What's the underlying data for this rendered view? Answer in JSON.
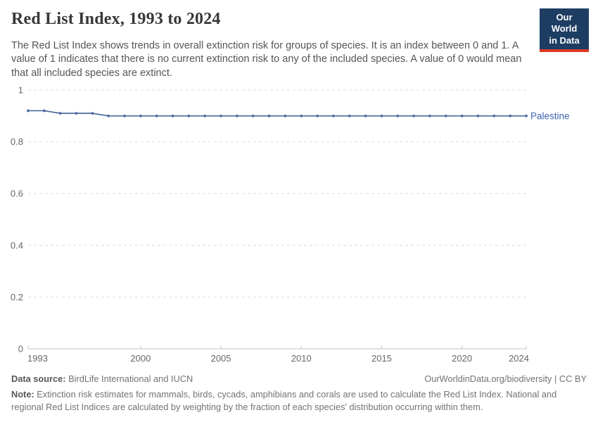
{
  "header": {
    "title": "Red List Index, 1993 to 2024",
    "subtitle": "The Red List Index shows trends in overall extinction risk for groups of species. It is an index between 0 and 1. A value of 1 indicates that there is no current extinction risk to any of the included species. A value of 0 would mean that all included species are extinct.",
    "logo": {
      "line1": "Our World",
      "line2": "in Data",
      "bg_color": "#1d3d63",
      "bar_color": "#dc3927"
    }
  },
  "chart_data": {
    "type": "line",
    "title": "Red List Index, 1993 to 2024",
    "x": [
      1993,
      1994,
      1995,
      1996,
      1997,
      1998,
      1999,
      2000,
      2001,
      2002,
      2003,
      2004,
      2005,
      2006,
      2007,
      2008,
      2009,
      2010,
      2011,
      2012,
      2013,
      2014,
      2015,
      2016,
      2017,
      2018,
      2019,
      2020,
      2021,
      2022,
      2023,
      2024
    ],
    "series": [
      {
        "name": "Palestine",
        "color": "#4C6A9C",
        "label_color": "#3d64ab",
        "values": [
          0.92,
          0.92,
          0.91,
          0.91,
          0.91,
          0.9,
          0.9,
          0.9,
          0.9,
          0.9,
          0.9,
          0.9,
          0.9,
          0.9,
          0.9,
          0.9,
          0.9,
          0.9,
          0.9,
          0.9,
          0.9,
          0.9,
          0.9,
          0.9,
          0.9,
          0.9,
          0.9,
          0.9,
          0.9,
          0.9,
          0.9,
          0.9
        ]
      }
    ],
    "xlabel": "",
    "ylabel": "",
    "ylim": [
      0,
      1
    ],
    "y_ticks": [
      0,
      0.2,
      0.4,
      0.6,
      0.8,
      1
    ],
    "x_tick_labels": [
      "1993",
      "2000",
      "2005",
      "2010",
      "2015",
      "2020",
      "2024"
    ],
    "grid": "horizontal-dashed",
    "grid_color": "#dedede",
    "axis_color": "#c4c4c4",
    "tick_text_color": "#666666",
    "legend_position": "end-of-line-label"
  },
  "footer": {
    "datasource_label": "Data source:",
    "datasource_value": " BirdLife International and IUCN",
    "attribution": "OurWorldinData.org/biodiversity | CC BY",
    "note_label": "Note:",
    "note_value": " Extinction risk estimates for mammals, birds, cycads, amphibians and corals are used to calculate the Red List Index. National and regional Red List Indices are calculated by weighting by the fraction of each species' distribution occurring within them."
  }
}
